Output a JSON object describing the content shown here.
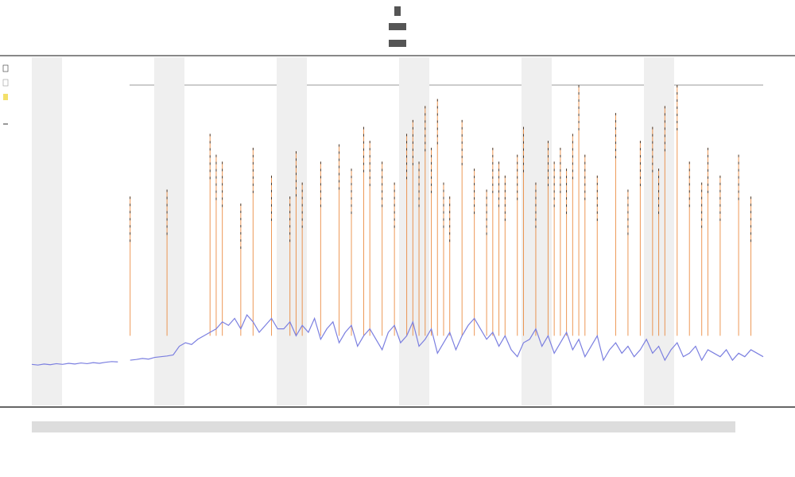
{
  "chart_data": {
    "type": "line",
    "xlim": [
      0,
      119
    ],
    "ylim": [
      0,
      100
    ],
    "series": [
      {
        "color": "#7b7fe0",
        "values": [
          11.8,
          11.6,
          11.9,
          11.7,
          12.0,
          11.8,
          12.1,
          11.9,
          12.2,
          12.0,
          12.3,
          12.1,
          12.4,
          12.6,
          12.5,
          null,
          13,
          13.2,
          13.5,
          13.3,
          13.8,
          14,
          14.2,
          14.5,
          17,
          18,
          17.5,
          19,
          20,
          21,
          22,
          24,
          23,
          25,
          22,
          26,
          24,
          21,
          23,
          25,
          22,
          22,
          24,
          20,
          23,
          21,
          25,
          19,
          22,
          24,
          18,
          21,
          23,
          17,
          20,
          22,
          19,
          16,
          21,
          23,
          18,
          20,
          24,
          17,
          19,
          22,
          15,
          18,
          21,
          16,
          20,
          23,
          25,
          22,
          19,
          21,
          17,
          20,
          16,
          14,
          18,
          19,
          22,
          17,
          20,
          15,
          18,
          21,
          16,
          19,
          14,
          17,
          20,
          13,
          16,
          18,
          15,
          17,
          14,
          16,
          19,
          15,
          17,
          13,
          16,
          18,
          14,
          15,
          17,
          13,
          16,
          15,
          14,
          16,
          13,
          15,
          14,
          16,
          15,
          14
        ]
      }
    ],
    "events": {
      "color": "#e8761e",
      "x": [
        16,
        22,
        29,
        30,
        31,
        34,
        36,
        39,
        42,
        43,
        44,
        47,
        50,
        52,
        54,
        55,
        57,
        59,
        61,
        62,
        63,
        64,
        65,
        66,
        67,
        68,
        70,
        72,
        74,
        75,
        76,
        77,
        79,
        80,
        82,
        84,
        85,
        86,
        87,
        88,
        89,
        90,
        92,
        95,
        97,
        99,
        101,
        102,
        103,
        105,
        107,
        109,
        110,
        112,
        115,
        117
      ],
      "values": [
        60,
        62,
        78,
        72,
        70,
        58,
        74,
        66,
        60,
        73,
        64,
        70,
        75,
        68,
        80,
        76,
        70,
        64,
        78,
        82,
        70,
        86,
        74,
        88,
        64,
        60,
        82,
        68,
        62,
        74,
        70,
        66,
        72,
        80,
        64,
        76,
        70,
        74,
        68,
        78,
        92,
        72,
        66,
        84,
        62,
        76,
        80,
        68,
        86,
        92,
        70,
        64,
        74,
        66,
        72,
        60
      ]
    }
  }
}
